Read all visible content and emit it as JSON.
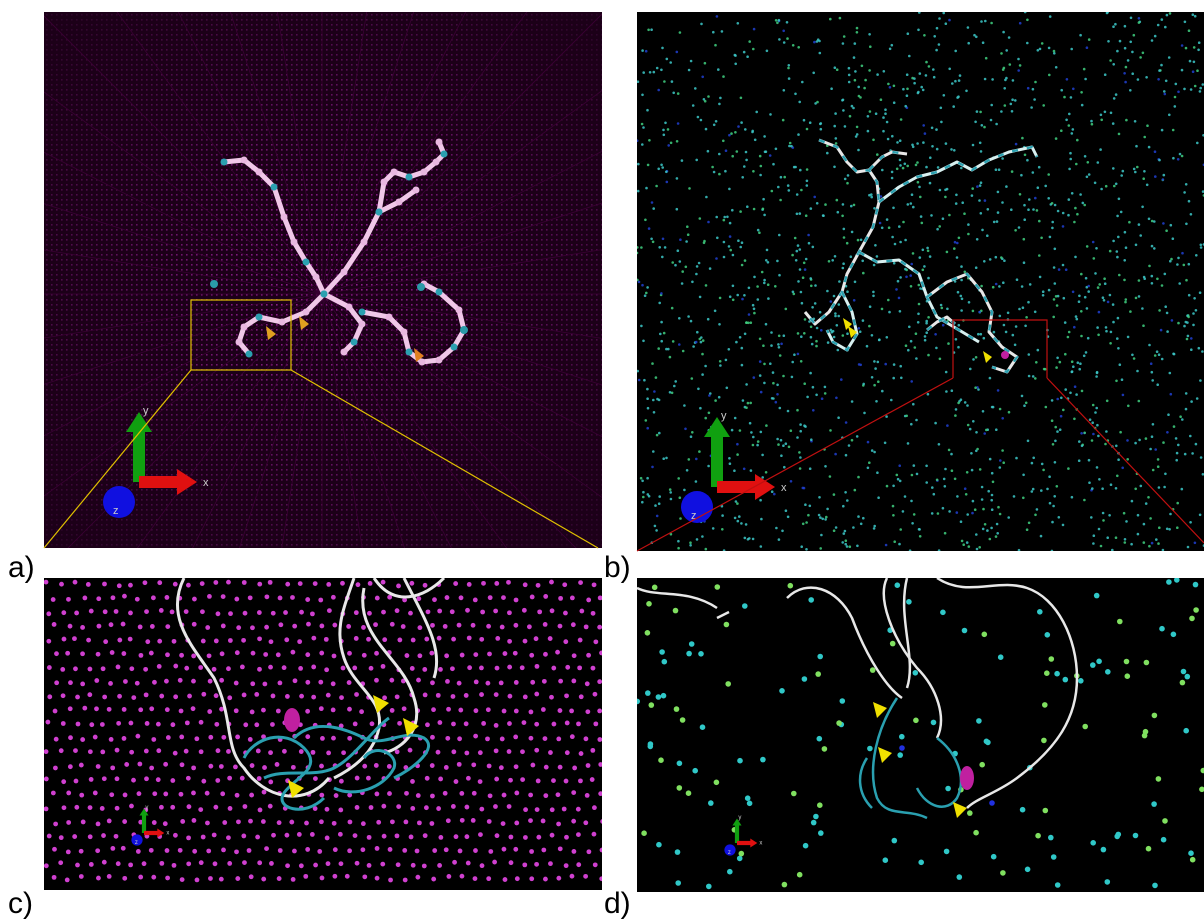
{
  "panels": [
    {
      "id": "a",
      "label": "a)",
      "background": "#1c0018",
      "particle_color": "#a020a0"
    },
    {
      "id": "b",
      "label": "b)",
      "background": "#000000",
      "particle_color": "#3cc8c8"
    },
    {
      "id": "c",
      "label": "c)",
      "background": "#000000",
      "particle_color": "#d040d0"
    },
    {
      "id": "d",
      "label": "d)",
      "background": "#000000",
      "particle_color": "#30c8c8"
    }
  ],
  "axis_labels": {
    "x": "x",
    "y": "y",
    "z": "z"
  },
  "colors": {
    "zoom_box_a": "#e0c000",
    "zoom_box_b": "#c01010",
    "coil_white": "#e8e8e8",
    "coil_cyan": "#2aa0b0",
    "sheet_yellow": "#f0e000",
    "helix_magenta": "#c020a0",
    "axis_x": "#e01010",
    "axis_y": "#10a010",
    "axis_z": "#1010e0"
  }
}
